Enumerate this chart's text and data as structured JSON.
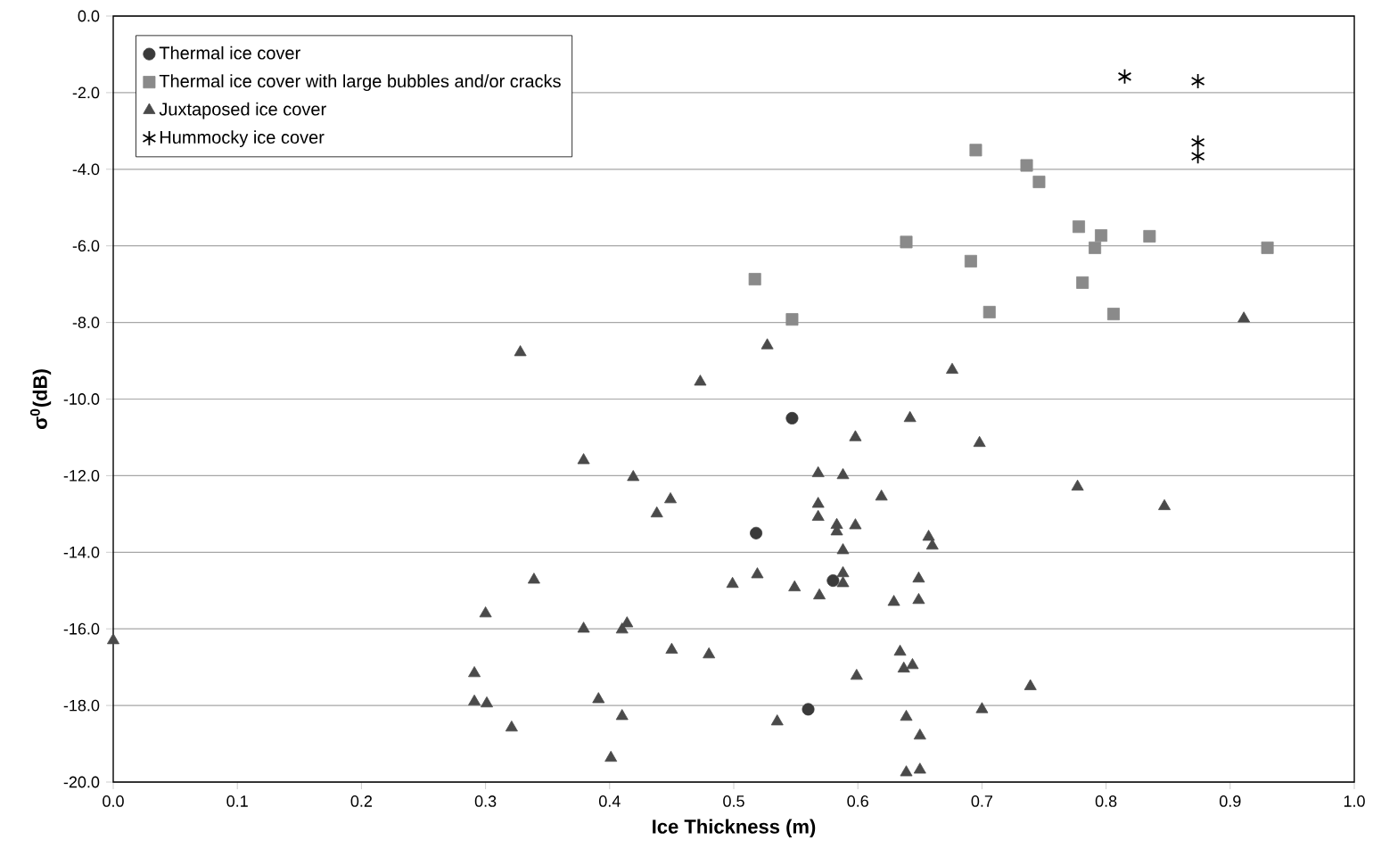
{
  "chart_data": {
    "type": "scatter",
    "xlabel": "Ice Thickness (m)",
    "ylabel": "σ$^{0}$(dB)",
    "xlim": [
      0,
      1
    ],
    "ylim": [
      -20,
      0
    ],
    "xticks": [
      {
        "value": 0,
        "label": "0.0"
      },
      {
        "value": 0.1,
        "label": "0.1"
      },
      {
        "value": 0.2,
        "label": "0.2"
      },
      {
        "value": 0.3,
        "label": "0.3"
      },
      {
        "value": 0.4,
        "label": "0.4"
      },
      {
        "value": 0.5,
        "label": "0.5"
      },
      {
        "value": 0.6,
        "label": "0.6"
      },
      {
        "value": 0.7,
        "label": "0.7"
      },
      {
        "value": 0.8,
        "label": "0.8"
      },
      {
        "value": 0.9,
        "label": "0.9"
      },
      {
        "value": 1,
        "label": "1.0"
      }
    ],
    "yticks": [
      {
        "value": -20,
        "label": "-20.0"
      },
      {
        "value": -18,
        "label": "-18.0"
      },
      {
        "value": -16,
        "label": "-16.0"
      },
      {
        "value": -14,
        "label": "-14.0"
      },
      {
        "value": -12,
        "label": "-12.0"
      },
      {
        "value": -10,
        "label": "-10.0"
      },
      {
        "value": -8,
        "label": "-8.0"
      },
      {
        "value": -6,
        "label": "-6.0"
      },
      {
        "value": -4,
        "label": "-4.0"
      },
      {
        "value": -2,
        "label": "-2.0"
      },
      {
        "value": 0,
        "label": "0.0"
      }
    ],
    "grid": "y",
    "legend": "top left",
    "series": [
      {
        "name": "Thermal ice cover",
        "color": "#3a3a3a",
        "marker": "circle",
        "x": [
          0.547,
          0.518,
          0.58,
          0.56
        ],
        "values": [
          -10.5,
          -13.5,
          -14.74,
          -18.1
        ]
      },
      {
        "name": "Thermal ice cover with large bubbles and/or cracks",
        "color": "#8a8a8a",
        "marker": "square",
        "x": [
          0.695,
          0.736,
          0.746,
          0.778,
          0.796,
          0.791,
          0.835,
          0.93,
          0.639,
          0.691,
          0.781,
          0.706,
          0.806,
          0.517,
          0.547
        ],
        "values": [
          -3.5,
          -3.9,
          -4.33,
          -5.5,
          -5.73,
          -6.05,
          -5.75,
          -6.05,
          -5.9,
          -6.4,
          -6.96,
          -7.73,
          -7.78,
          -6.87,
          -7.92
        ]
      },
      {
        "name": "Juxtaposed ice cover",
        "color": "#4a4a4a",
        "marker": "triangle",
        "x": [
          0.0,
          0.328,
          0.911,
          0.527,
          0.676,
          0.473,
          0.642,
          0.598,
          0.698,
          0.379,
          0.419,
          0.568,
          0.588,
          0.777,
          0.449,
          0.438,
          0.619,
          0.568,
          0.568,
          0.847,
          0.583,
          0.583,
          0.598,
          0.657,
          0.66,
          0.588,
          0.339,
          0.499,
          0.519,
          0.549,
          0.569,
          0.588,
          0.588,
          0.649,
          0.629,
          0.649,
          0.3,
          0.379,
          0.41,
          0.414,
          0.45,
          0.48,
          0.634,
          0.637,
          0.644,
          0.599,
          0.291,
          0.291,
          0.301,
          0.391,
          0.41,
          0.535,
          0.321,
          0.401,
          0.639,
          0.65,
          0.639,
          0.65,
          0.739,
          0.7
        ],
        "values": [
          -16.3,
          -8.78,
          -7.9,
          -8.6,
          -9.24,
          -9.55,
          -10.5,
          -11.0,
          -11.15,
          -11.6,
          -12.04,
          -11.94,
          -11.99,
          -12.29,
          -12.62,
          -12.99,
          -12.55,
          -12.74,
          -13.08,
          -12.8,
          -13.29,
          -13.46,
          -13.3,
          -13.6,
          -13.83,
          -13.95,
          -14.72,
          -14.83,
          -14.58,
          -14.92,
          -15.13,
          -14.55,
          -14.81,
          -14.69,
          -15.3,
          -15.25,
          -15.6,
          -16.0,
          -16.02,
          -15.86,
          -16.55,
          -16.67,
          -16.6,
          -17.04,
          -16.95,
          -17.23,
          -17.16,
          -17.9,
          -17.95,
          -17.84,
          -18.28,
          -18.42,
          -18.58,
          -19.37,
          -18.3,
          -18.79,
          -19.75,
          -19.68,
          -17.5,
          -18.1
        ]
      },
      {
        "name": "Hummocky ice cover",
        "color": "#000000",
        "marker": "cross",
        "x": [
          0.815,
          0.874,
          0.874,
          0.874
        ],
        "values": [
          -1.58,
          -1.7,
          -3.3,
          -3.66
        ]
      }
    ]
  }
}
